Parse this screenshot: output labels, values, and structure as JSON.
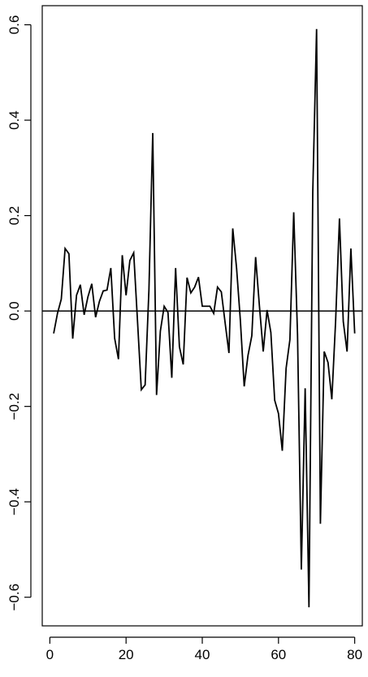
{
  "chart_data": {
    "type": "line",
    "title": "",
    "xlabel": "",
    "ylabel": "",
    "xlim": [
      -2,
      82
    ],
    "ylim": [
      -0.66,
      0.64
    ],
    "x_ticks": [
      0,
      20,
      40,
      60,
      80
    ],
    "y_ticks": [
      0.6,
      0.4,
      0.2,
      0.0,
      -0.2,
      -0.4,
      -0.6
    ],
    "x_tick_labels": [
      "0",
      "20",
      "40",
      "60",
      "80"
    ],
    "y_tick_labels": [
      "0.6",
      "0.4",
      "0.2",
      "0.0",
      "−0.2",
      "−0.4",
      "−0.6"
    ],
    "reference_line": {
      "y": 0.0,
      "color": "#000000"
    },
    "grid": false,
    "legend": "none",
    "series": [
      {
        "color": "#000000",
        "x": [
          1,
          2,
          3,
          4,
          5,
          6,
          7,
          8,
          9,
          10,
          11,
          12,
          13,
          14,
          15,
          16,
          17,
          18,
          19,
          20,
          21,
          22,
          23,
          24,
          25,
          26,
          27,
          28,
          29,
          30,
          31,
          32,
          33,
          34,
          35,
          36,
          37,
          38,
          39,
          40,
          41,
          42,
          43,
          44,
          45,
          46,
          47,
          48,
          49,
          50,
          51,
          52,
          53,
          54,
          55,
          56,
          57,
          58,
          59,
          60,
          61,
          62,
          63,
          64,
          65,
          66,
          67,
          68,
          69,
          70,
          71,
          72,
          73,
          74,
          75,
          76,
          77,
          78,
          79,
          80
        ],
        "values": [
          -0.047,
          -0.005,
          0.025,
          0.131,
          0.12,
          -0.058,
          0.033,
          0.055,
          -0.008,
          0.03,
          0.057,
          -0.013,
          0.02,
          0.042,
          0.044,
          0.09,
          -0.057,
          -0.101,
          0.117,
          0.033,
          0.106,
          0.122,
          -0.021,
          -0.165,
          -0.155,
          0.044,
          0.373,
          -0.176,
          -0.042,
          0.01,
          -0.003,
          -0.14,
          0.09,
          -0.075,
          -0.112,
          0.07,
          0.038,
          0.05,
          0.071,
          0.01,
          0.01,
          0.01,
          -0.005,
          0.05,
          0.04,
          -0.025,
          -0.088,
          0.173,
          0.09,
          -0.02,
          -0.158,
          -0.093,
          -0.052,
          0.113,
          0.01,
          -0.085,
          0.002,
          -0.045,
          -0.187,
          -0.215,
          -0.293,
          -0.12,
          -0.06,
          0.207,
          -0.05,
          -0.542,
          -0.162,
          -0.621,
          0.25,
          0.591,
          -0.446,
          -0.085,
          -0.108,
          -0.185,
          -0.02,
          0.194,
          -0.022,
          -0.085,
          0.131,
          -0.047
        ]
      }
    ]
  }
}
